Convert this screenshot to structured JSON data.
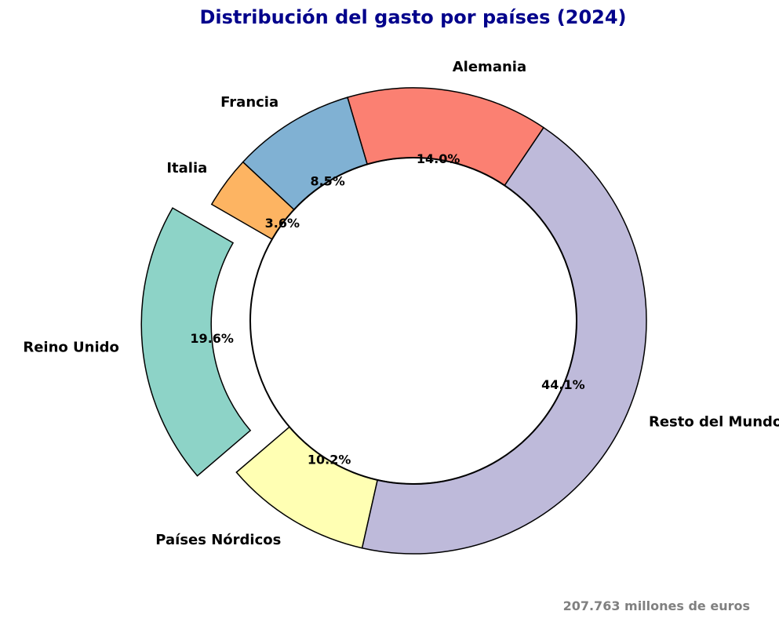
{
  "chart_data": {
    "type": "pie",
    "variant": "donut",
    "title": "Distribución del gasto por países (2024)",
    "footnote": "207.763 millones de euros",
    "slices": [
      {
        "label": "Reino Unido",
        "value": 19.6,
        "value_label": "19.6%",
        "color": "#8dd3c7",
        "exploded": true
      },
      {
        "label": "Países Nórdicos",
        "value": 10.2,
        "value_label": "10.2%",
        "color": "#ffffb3",
        "exploded": false
      },
      {
        "label": "Resto del Mundo",
        "value": 44.1,
        "value_label": "44.1%",
        "color": "#bebada",
        "exploded": false
      },
      {
        "label": "Alemania",
        "value": 14.0,
        "value_label": "14.0%",
        "color": "#fb8072",
        "exploded": false
      },
      {
        "label": "Francia",
        "value": 8.5,
        "value_label": "8.5%",
        "color": "#80b1d3",
        "exploded": false
      },
      {
        "label": "Italia",
        "value": 3.6,
        "value_label": "3.6%",
        "color": "#fdb462",
        "exploded": false
      }
    ]
  }
}
